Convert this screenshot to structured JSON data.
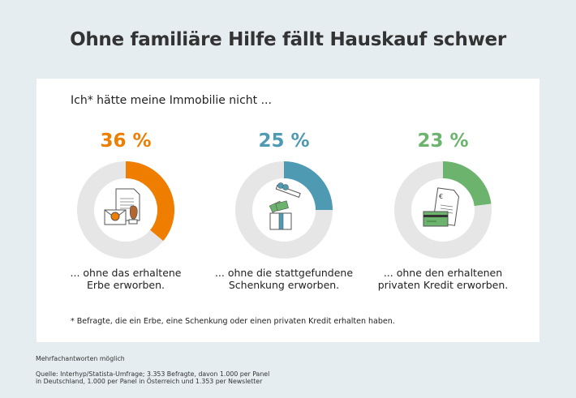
{
  "title": "Ohne familiäre Hilfe fällt Hauskauf schwer",
  "subtitle": "Ich* hätte meine Immobilie nicht ...",
  "items": [
    {
      "percent_label": "36 %",
      "caption_1": "... ohne das erhaltene",
      "caption_2": "Erbe erworben.",
      "color": "#ee7d00",
      "icon": "inheritance-document-stamp-icon"
    },
    {
      "percent_label": "25 %",
      "caption_1": "... ohne die stattgefundene",
      "caption_2": "Schenkung erworben.",
      "color": "#4e9ab3",
      "icon": "gift-box-money-icon"
    },
    {
      "percent_label": "23 %",
      "caption_1": "... ohne den erhaltenen",
      "caption_2": "privaten Kredit erworben.",
      "color": "#6cb36d",
      "icon": "loan-document-card-icon"
    }
  ],
  "footnote": "* Befragte, die ein Erbe, eine Schenkung oder einen privaten Kredit erhalten haben.",
  "note": "Mehrfachantworten möglich",
  "source_1": "Quelle: Interhyp/Statista-Umfrage; 3.353 Befragte, davon 1.000 per Panel",
  "source_2": "in Deutschland, 1.000 per Panel in Österreich und 1.353 per Newsletter",
  "chart_data": {
    "type": "pie",
    "variant": "donut",
    "title": "Ohne familiäre Hilfe fällt Hauskauf schwer",
    "categories": [
      "Erbe",
      "Schenkung",
      "Privater Kredit"
    ],
    "values": [
      36,
      25,
      23
    ],
    "unit": "%",
    "remainder_color": "#e6e6e6"
  }
}
